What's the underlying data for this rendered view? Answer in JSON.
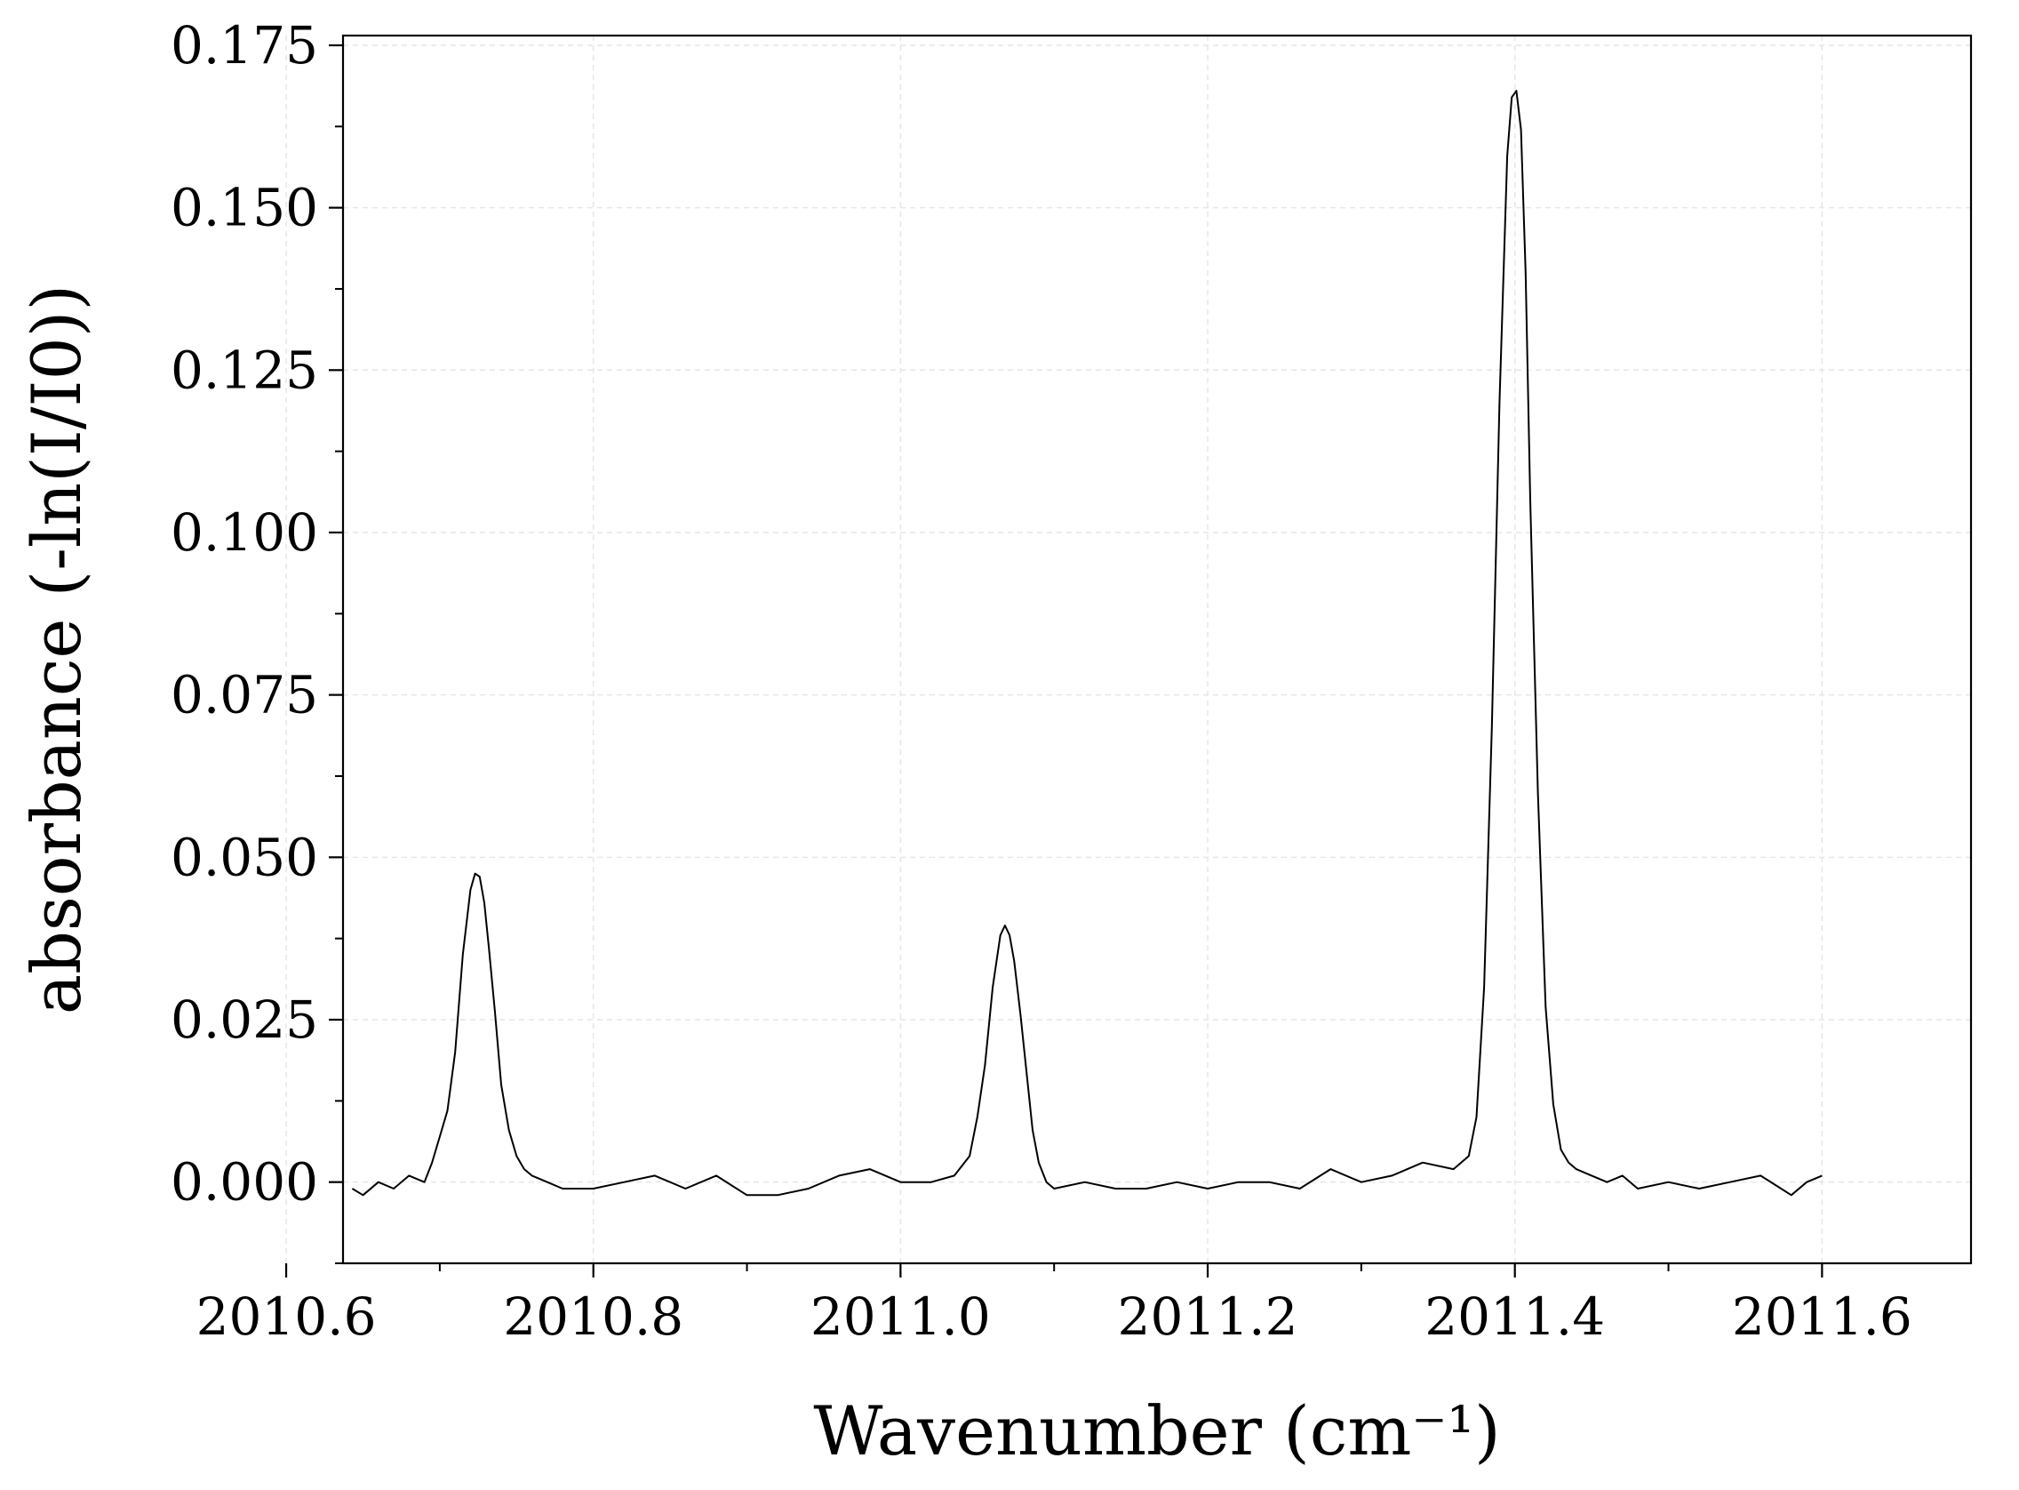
{
  "chart_data": {
    "type": "line",
    "title": "",
    "xlabel": "Wavenumber (cm⁻¹)",
    "ylabel": "absorbance (-ln(I/I0))",
    "xlim": [
      2010.637,
      2011.697
    ],
    "ylim": [
      -0.0125,
      0.1765
    ],
    "xticks": [
      2010.6,
      2010.8,
      2011.0,
      2011.2,
      2011.4,
      2011.6
    ],
    "xtick_labels": [
      "2010.6",
      "2010.8",
      "2011.0",
      "2011.2",
      "2011.4",
      "2011.6"
    ],
    "x_minor_ticks": [
      2010.7,
      2010.9,
      2011.1,
      2011.3,
      2011.5
    ],
    "yticks": [
      0.0,
      0.025,
      0.05,
      0.075,
      0.1,
      0.125,
      0.15,
      0.175
    ],
    "ytick_labels": [
      "0.000",
      "0.025",
      "0.050",
      "0.075",
      "0.100",
      "0.125",
      "0.150",
      "0.175"
    ],
    "y_minor_ticks": [
      -0.0125,
      0.0125,
      0.0375,
      0.0625,
      0.0875,
      0.1125,
      0.1375,
      0.1625
    ],
    "grid": true,
    "legend": "none",
    "line_color": "#000000",
    "series": [
      {
        "x": [
          2010.643,
          2010.65,
          2010.66,
          2010.67,
          2010.68,
          2010.69,
          2010.695,
          2010.7,
          2010.705,
          2010.71,
          2010.715,
          2010.72,
          2010.723,
          2010.726,
          2010.729,
          2010.732,
          2010.736,
          2010.74,
          2010.745,
          2010.75,
          2010.755,
          2010.76,
          2010.77,
          2010.78,
          2010.8,
          2010.82,
          2010.84,
          2010.86,
          2010.88,
          2010.9,
          2010.92,
          2010.94,
          2010.96,
          2010.98,
          2011.0,
          2011.02,
          2011.035,
          2011.045,
          2011.05,
          2011.055,
          2011.06,
          2011.065,
          2011.068,
          2011.071,
          2011.074,
          2011.078,
          2011.082,
          2011.086,
          2011.09,
          2011.095,
          2011.1,
          2011.12,
          2011.14,
          2011.16,
          2011.18,
          2011.2,
          2011.22,
          2011.24,
          2011.26,
          2011.28,
          2011.3,
          2011.32,
          2011.34,
          2011.36,
          2011.37,
          2011.375,
          2011.38,
          2011.385,
          2011.39,
          2011.395,
          2011.398,
          2011.401,
          2011.404,
          2011.407,
          2011.41,
          2011.415,
          2011.42,
          2011.425,
          2011.43,
          2011.435,
          2011.44,
          2011.45,
          2011.46,
          2011.47,
          2011.48,
          2011.5,
          2011.52,
          2011.54,
          2011.56,
          2011.58,
          2011.59,
          2011.6
        ],
        "y": [
          -0.001,
          -0.002,
          0.0,
          -0.001,
          0.001,
          0.0,
          0.003,
          0.007,
          0.011,
          0.02,
          0.035,
          0.045,
          0.0475,
          0.047,
          0.043,
          0.036,
          0.026,
          0.015,
          0.008,
          0.004,
          0.002,
          0.001,
          0.0,
          -0.001,
          -0.001,
          0.0,
          0.001,
          -0.001,
          0.001,
          -0.002,
          -0.002,
          -0.001,
          0.001,
          0.002,
          0.0,
          0.0,
          0.001,
          0.004,
          0.01,
          0.018,
          0.03,
          0.038,
          0.0395,
          0.038,
          0.034,
          0.026,
          0.017,
          0.008,
          0.003,
          0.0,
          -0.001,
          0.0,
          -0.001,
          -0.001,
          0.0,
          -0.001,
          0.0,
          0.0,
          -0.001,
          0.002,
          0.0,
          0.001,
          0.003,
          0.002,
          0.004,
          0.01,
          0.03,
          0.07,
          0.12,
          0.158,
          0.167,
          0.168,
          0.162,
          0.14,
          0.105,
          0.06,
          0.027,
          0.012,
          0.005,
          0.003,
          0.002,
          0.001,
          0.0,
          0.001,
          -0.001,
          0.0,
          -0.001,
          0.0,
          0.001,
          -0.002,
          0.0,
          0.001
        ]
      }
    ]
  }
}
